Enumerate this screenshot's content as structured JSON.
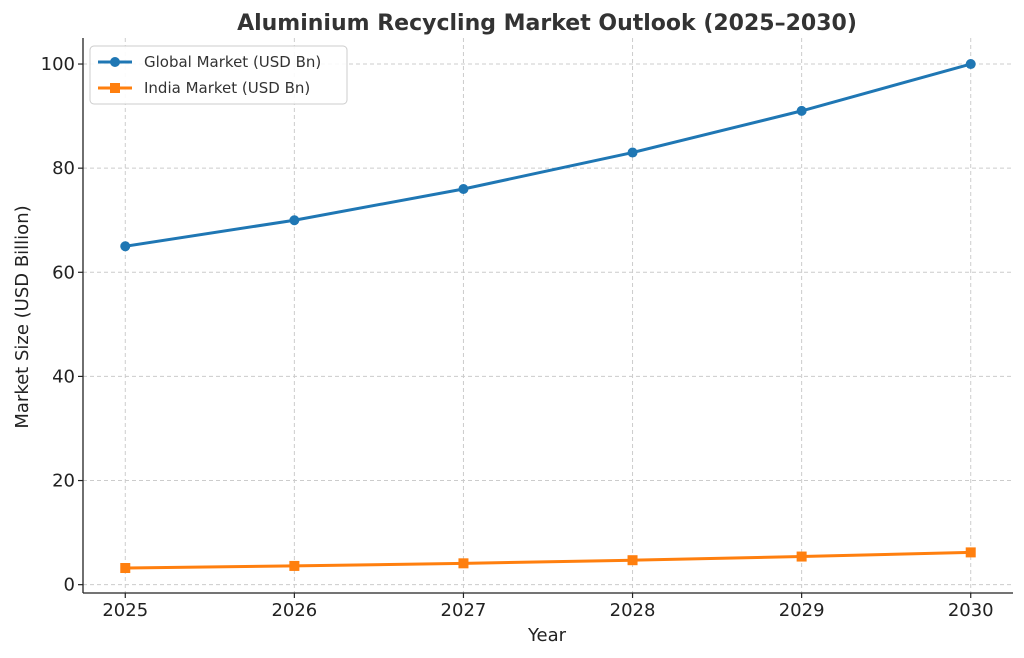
{
  "chart_data": {
    "type": "line",
    "title": "Aluminium Recycling Market Outlook (2025–2030)",
    "xlabel": "Year",
    "ylabel": "Market Size (USD Billion)",
    "x": [
      2025,
      2026,
      2027,
      2028,
      2029,
      2030
    ],
    "xlim": [
      2024.75,
      2030.25
    ],
    "ylim": [
      -1.6,
      105
    ],
    "yticks": [
      0,
      20,
      40,
      60,
      80,
      100
    ],
    "grid": true,
    "legend_position": "top-left",
    "series": [
      {
        "name": "Global Market (USD Bn)",
        "values": [
          65,
          70,
          76,
          83,
          91,
          100
        ],
        "color": "#1f77b4",
        "marker": "circle"
      },
      {
        "name": "India Market (USD Bn)",
        "values": [
          3.2,
          3.6,
          4.1,
          4.7,
          5.4,
          6.2
        ],
        "color": "#ff7f0e",
        "marker": "square"
      }
    ]
  }
}
